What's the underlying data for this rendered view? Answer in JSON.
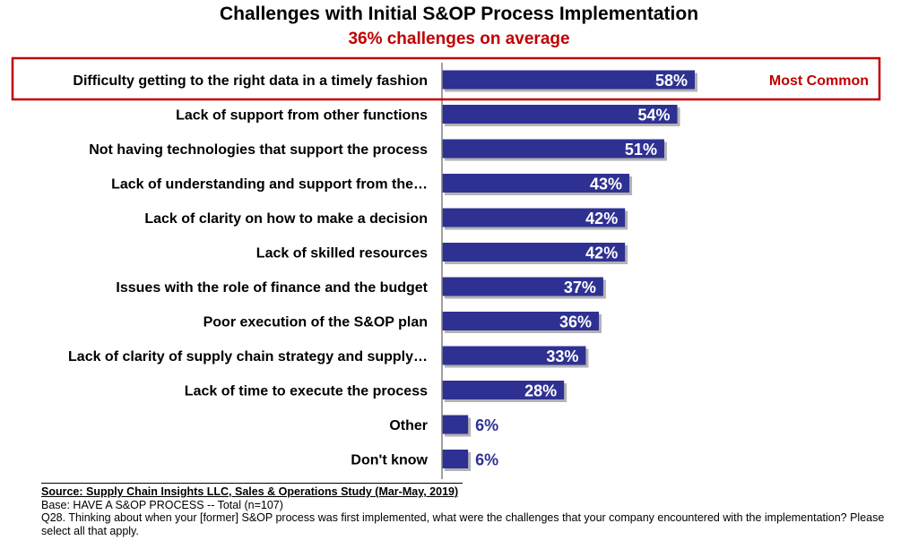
{
  "chart_data": {
    "type": "bar",
    "orientation": "horizontal",
    "title": "Challenges with Initial S&OP Process Implementation",
    "subtitle": "36% challenges on average",
    "categories": [
      "Difficulty getting to the right data in a timely fashion",
      "Lack of support from other functions",
      "Not having technologies that support the process",
      "Lack of understanding and support from the…",
      "Lack of clarity on how to make a decision",
      "Lack of skilled resources",
      "Issues with the role of finance and the budget",
      "Poor execution of the S&OP plan",
      "Lack of clarity of supply chain strategy and supply…",
      "Lack of time to execute the process",
      "Other",
      "Don't know"
    ],
    "values": [
      58,
      54,
      51,
      43,
      42,
      42,
      37,
      36,
      33,
      28,
      6,
      6
    ],
    "data_labels": [
      "58%",
      "54%",
      "51%",
      "43%",
      "42%",
      "42%",
      "37%",
      "36%",
      "33%",
      "28%",
      "6%",
      "6%"
    ],
    "xlim": [
      0,
      100
    ],
    "grid": false,
    "bar_color": "#2e3192",
    "highlight": {
      "index": 0,
      "label": "Most Common",
      "color": "#c00000"
    }
  },
  "footer": {
    "source": "Source:  Supply Chain Insights LLC, Sales & Operations Study (Mar-May, 2019)",
    "base": "Base: HAVE A S&OP PROCESS  -- Total (n=107)",
    "question": "Q28. Thinking about when your [former] S&OP process was first implemented, what were the challenges that your company encountered with the implementation? Please select all that apply."
  }
}
